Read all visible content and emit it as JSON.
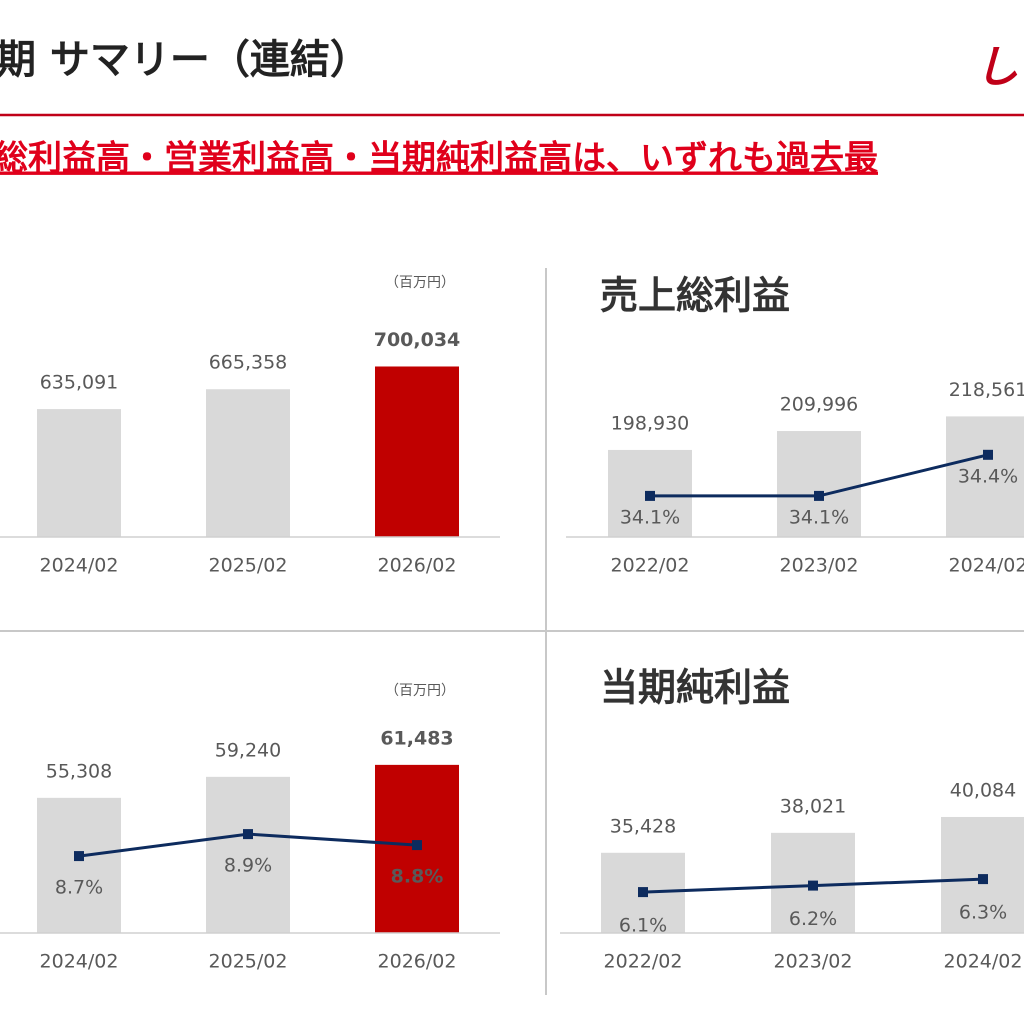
{
  "header": {
    "title": "期 サマリー（連結）",
    "subtitle": "総利益高・営業利益高・当期純利益高は、いずれも過去最",
    "logo": "し"
  },
  "chart_data": [
    {
      "type": "bar",
      "unit": "（百万円）",
      "categories": [
        "2024/02",
        "2025/02",
        "2026/02"
      ],
      "series": [
        {
          "type": "bar",
          "values": [
            635091,
            665358,
            700034
          ],
          "value_labels": [
            "635,091",
            "665,358",
            "700,034"
          ],
          "colors": [
            "#d9d9d9",
            "#d9d9d9",
            "#c00000"
          ]
        }
      ],
      "ylim": [
        440000,
        745000
      ]
    },
    {
      "type": "bar",
      "title": "売上総利益",
      "categories": [
        "2022/02",
        "2023/02",
        "2024/02"
      ],
      "series": [
        {
          "type": "bar",
          "values": [
            198930,
            209996,
            218561
          ],
          "value_labels": [
            "198,930",
            "209,996",
            "218,561"
          ],
          "colors": [
            "#d9d9d9",
            "#d9d9d9",
            "#d9d9d9"
          ]
        },
        {
          "type": "line",
          "axis": "y2",
          "color": "#0d2b5e",
          "values": [
            34.1,
            34.1,
            34.4
          ],
          "value_labels": [
            "34.1%",
            "34.1%",
            "34.4%"
          ]
        }
      ],
      "ylim": [
        148000,
        265000
      ],
      "y2lim": [
        33.8,
        35.26
      ]
    },
    {
      "type": "bar",
      "unit": "（百万円）",
      "categories": [
        "2024/02",
        "2025/02",
        "2026/02"
      ],
      "series": [
        {
          "type": "bar",
          "values": [
            55308,
            59240,
            61483
          ],
          "value_labels": [
            "55,308",
            "59,240",
            "61,483"
          ],
          "colors": [
            "#d9d9d9",
            "#d9d9d9",
            "#c00000"
          ]
        },
        {
          "type": "line",
          "axis": "y2",
          "color": "#0d2b5e",
          "values": [
            8.7,
            8.9,
            8.8
          ],
          "value_labels": [
            "8.7%",
            "8.9%",
            "8.8%"
          ]
        }
      ],
      "ylim": [
        30000,
        67450
      ],
      "y2lim": [
        8.0,
        9.82
      ]
    },
    {
      "type": "bar",
      "title": "当期純利益",
      "categories": [
        "2022/02",
        "2023/02",
        "2024/02"
      ],
      "series": [
        {
          "type": "bar",
          "values": [
            35428,
            38021,
            40084
          ],
          "value_labels": [
            "35,428",
            "38,021",
            "40,084"
          ],
          "colors": [
            "#d9d9d9",
            "#d9d9d9",
            "#d9d9d9"
          ]
        },
        {
          "type": "line",
          "axis": "y2",
          "color": "#0d2b5e",
          "values": [
            6.1,
            6.2,
            6.3
          ],
          "value_labels": [
            "6.1%",
            "6.2%",
            "6.3%"
          ]
        }
      ],
      "ylim": [
        25000,
        51000
      ],
      "y2lim": [
        5.47,
        8.55
      ]
    }
  ]
}
